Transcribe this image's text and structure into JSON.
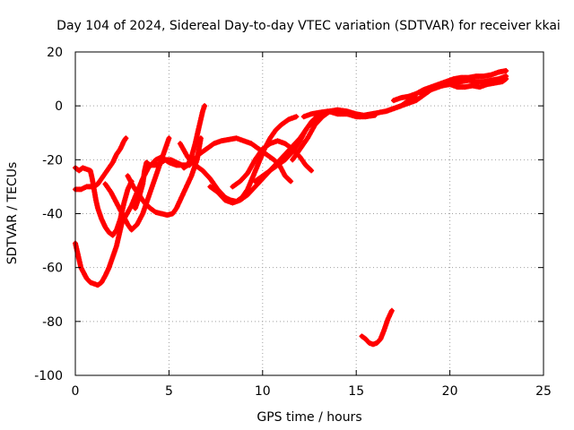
{
  "chart_data": {
    "type": "scatter",
    "title": "Day 104 of 2024, Sidereal Day-to-day VTEC variation (SDTVAR) for receiver kkai",
    "xlabel": "GPS time / hours",
    "ylabel": "SDTVAR / TECUs",
    "xlim": [
      0,
      25
    ],
    "ylim": [
      -100,
      20
    ],
    "xticks": [
      0,
      5,
      10,
      15,
      20,
      25
    ],
    "xtick_labels": [
      "0",
      "5",
      "10",
      "15",
      "20",
      "25"
    ],
    "yticks": [
      -100,
      -80,
      -60,
      -40,
      -20,
      0,
      20
    ],
    "ytick_labels": [
      "-100",
      "-80",
      "-60",
      "-40",
      "-20",
      "0",
      "20"
    ],
    "grid": true,
    "legend": "none",
    "marker_color": "#ff0000",
    "series": [
      {
        "points": [
          [
            0.0,
            -51
          ],
          [
            0.1,
            -54
          ],
          [
            0.2,
            -57
          ],
          [
            0.3,
            -60
          ],
          [
            0.45,
            -62
          ],
          [
            0.6,
            -64
          ],
          [
            0.8,
            -65.5
          ],
          [
            1.0,
            -66
          ],
          [
            1.2,
            -66.5
          ],
          [
            1.4,
            -65.5
          ],
          [
            1.6,
            -63
          ],
          [
            1.8,
            -60
          ],
          [
            2.0,
            -56
          ],
          [
            2.2,
            -52
          ],
          [
            2.4,
            -46
          ],
          [
            2.5,
            -43
          ]
        ]
      },
      {
        "points": [
          [
            0.0,
            -23
          ],
          [
            0.2,
            -24
          ],
          [
            0.4,
            -23
          ],
          [
            0.6,
            -23.5
          ],
          [
            0.8,
            -24
          ],
          [
            0.9,
            -27
          ],
          [
            1.0,
            -31
          ],
          [
            1.1,
            -35
          ],
          [
            1.2,
            -38
          ],
          [
            1.4,
            -42
          ],
          [
            1.6,
            -45
          ],
          [
            1.8,
            -47
          ],
          [
            2.0,
            -48
          ],
          [
            2.2,
            -46
          ],
          [
            2.4,
            -42
          ],
          [
            2.6,
            -36
          ],
          [
            2.8,
            -31
          ],
          [
            3.0,
            -28
          ]
        ]
      },
      {
        "points": [
          [
            0.0,
            -31
          ],
          [
            0.3,
            -31
          ],
          [
            0.6,
            -30
          ],
          [
            0.8,
            -30
          ],
          [
            1.0,
            -30
          ],
          [
            1.2,
            -29
          ],
          [
            1.4,
            -27
          ],
          [
            1.6,
            -25
          ],
          [
            1.8,
            -23
          ],
          [
            2.0,
            -21
          ],
          [
            2.2,
            -18
          ],
          [
            2.4,
            -16
          ],
          [
            2.6,
            -13
          ],
          [
            2.7,
            -12
          ]
        ]
      },
      {
        "points": [
          [
            1.6,
            -29
          ],
          [
            1.9,
            -32
          ],
          [
            2.2,
            -36
          ],
          [
            2.5,
            -40
          ],
          [
            2.8,
            -44
          ],
          [
            3.0,
            -46
          ],
          [
            3.3,
            -44
          ],
          [
            3.6,
            -40
          ],
          [
            3.9,
            -34
          ],
          [
            4.2,
            -28
          ],
          [
            4.5,
            -22
          ],
          [
            4.8,
            -16
          ],
          [
            5.0,
            -12
          ]
        ]
      },
      {
        "points": [
          [
            2.8,
            -26
          ],
          [
            3.1,
            -30
          ],
          [
            3.4,
            -33
          ],
          [
            3.7,
            -36
          ],
          [
            4.0,
            -38
          ],
          [
            4.3,
            -39.5
          ],
          [
            4.6,
            -40
          ],
          [
            4.9,
            -40.5
          ],
          [
            5.2,
            -40
          ],
          [
            5.4,
            -38
          ],
          [
            5.6,
            -35
          ],
          [
            5.8,
            -32
          ],
          [
            6.0,
            -29
          ],
          [
            6.2,
            -26
          ],
          [
            6.5,
            -20
          ],
          [
            6.6,
            -16
          ],
          [
            6.7,
            -12
          ]
        ]
      },
      {
        "points": [
          [
            3.2,
            -38
          ],
          [
            3.4,
            -34
          ],
          [
            3.6,
            -29
          ],
          [
            3.7,
            -24
          ],
          [
            3.8,
            -21
          ],
          [
            4.0,
            -22
          ],
          [
            4.3,
            -22
          ],
          [
            4.6,
            -21
          ],
          [
            4.8,
            -20
          ],
          [
            5.1,
            -20
          ],
          [
            5.4,
            -21
          ],
          [
            5.7,
            -22
          ],
          [
            6.0,
            -22
          ],
          [
            6.2,
            -19
          ],
          [
            6.4,
            -14
          ],
          [
            6.6,
            -8
          ],
          [
            6.8,
            -2
          ],
          [
            6.9,
            0
          ]
        ]
      },
      {
        "points": [
          [
            2.6,
            -42
          ],
          [
            3.0,
            -37
          ],
          [
            3.3,
            -32
          ],
          [
            3.6,
            -27
          ],
          [
            3.9,
            -23
          ],
          [
            4.3,
            -20
          ],
          [
            4.6,
            -19
          ],
          [
            5.0,
            -21
          ],
          [
            5.4,
            -22
          ],
          [
            5.8,
            -22
          ],
          [
            6.1,
            -22
          ]
        ]
      },
      {
        "points": [
          [
            5.6,
            -14
          ],
          [
            6.0,
            -19
          ],
          [
            6.4,
            -22
          ],
          [
            6.8,
            -24
          ],
          [
            7.2,
            -27
          ],
          [
            7.6,
            -31
          ],
          [
            8.0,
            -34
          ],
          [
            8.3,
            -35
          ],
          [
            8.6,
            -35.5
          ],
          [
            8.9,
            -34
          ],
          [
            9.2,
            -31
          ],
          [
            9.5,
            -26
          ],
          [
            9.8,
            -21
          ],
          [
            10.1,
            -16
          ],
          [
            10.4,
            -12
          ],
          [
            10.7,
            -9
          ],
          [
            11.0,
            -7
          ],
          [
            11.4,
            -5
          ],
          [
            11.8,
            -4
          ]
        ]
      },
      {
        "points": [
          [
            5.8,
            -23
          ],
          [
            6.2,
            -21
          ],
          [
            6.6,
            -18
          ],
          [
            7.0,
            -16
          ],
          [
            7.4,
            -14
          ],
          [
            7.8,
            -13
          ],
          [
            8.2,
            -12.5
          ],
          [
            8.6,
            -12
          ],
          [
            9.0,
            -13
          ],
          [
            9.4,
            -14
          ],
          [
            9.8,
            -16
          ],
          [
            10.2,
            -18
          ],
          [
            10.6,
            -20
          ],
          [
            10.9,
            -22
          ],
          [
            11.2,
            -26
          ],
          [
            11.5,
            -28
          ]
        ]
      },
      {
        "points": [
          [
            7.2,
            -30
          ],
          [
            7.6,
            -32
          ],
          [
            8.0,
            -35
          ],
          [
            8.4,
            -36
          ],
          [
            8.8,
            -35
          ],
          [
            9.2,
            -33
          ],
          [
            9.6,
            -30
          ],
          [
            10.0,
            -27
          ],
          [
            10.4,
            -24
          ],
          [
            10.8,
            -21
          ],
          [
            11.2,
            -18
          ],
          [
            11.6,
            -15
          ],
          [
            12.0,
            -12
          ],
          [
            12.4,
            -8
          ],
          [
            12.8,
            -5
          ],
          [
            13.2,
            -3
          ],
          [
            13.6,
            -2
          ]
        ]
      },
      {
        "points": [
          [
            8.4,
            -30
          ],
          [
            8.8,
            -28
          ],
          [
            9.2,
            -25
          ],
          [
            9.6,
            -20
          ],
          [
            10.0,
            -16
          ],
          [
            10.4,
            -14
          ],
          [
            10.8,
            -13
          ],
          [
            11.2,
            -14
          ],
          [
            11.6,
            -16
          ],
          [
            12.0,
            -19
          ],
          [
            12.3,
            -22
          ],
          [
            12.6,
            -24
          ]
        ]
      },
      {
        "points": [
          [
            9.6,
            -28
          ],
          [
            10.0,
            -26
          ],
          [
            10.4,
            -24
          ],
          [
            10.8,
            -22
          ],
          [
            11.2,
            -20
          ],
          [
            11.6,
            -17
          ],
          [
            12.0,
            -13
          ],
          [
            12.3,
            -9
          ],
          [
            12.6,
            -6
          ],
          [
            12.9,
            -4
          ],
          [
            13.2,
            -3
          ],
          [
            13.6,
            -2
          ],
          [
            14.0,
            -2
          ],
          [
            14.4,
            -2.5
          ],
          [
            14.8,
            -3
          ],
          [
            15.2,
            -4
          ],
          [
            15.6,
            -3.5
          ]
        ]
      },
      {
        "points": [
          [
            11.6,
            -20
          ],
          [
            12.0,
            -16
          ],
          [
            12.4,
            -12
          ],
          [
            12.8,
            -7
          ],
          [
            13.2,
            -4
          ],
          [
            13.6,
            -2
          ],
          [
            14.0,
            -1.5
          ],
          [
            14.5,
            -2
          ],
          [
            15.0,
            -3
          ],
          [
            15.4,
            -3.5
          ],
          [
            15.8,
            -3
          ],
          [
            16.2,
            -2.5
          ],
          [
            16.6,
            -2
          ],
          [
            17.0,
            -1
          ],
          [
            17.4,
            0
          ],
          [
            17.8,
            2
          ],
          [
            18.2,
            3
          ]
        ]
      },
      {
        "points": [
          [
            12.2,
            -4
          ],
          [
            12.6,
            -3
          ],
          [
            13.0,
            -2.5
          ],
          [
            13.5,
            -2
          ],
          [
            14.0,
            -3
          ],
          [
            14.5,
            -3
          ],
          [
            15.0,
            -4
          ],
          [
            15.5,
            -4
          ],
          [
            16.0,
            -3.5
          ]
        ]
      },
      {
        "points": [
          [
            16.6,
            -2
          ],
          [
            17.0,
            -1
          ],
          [
            17.4,
            0
          ],
          [
            17.8,
            1
          ],
          [
            18.2,
            2
          ],
          [
            18.6,
            4
          ],
          [
            19.0,
            6
          ],
          [
            19.4,
            7
          ],
          [
            19.8,
            8
          ],
          [
            20.2,
            8.5
          ],
          [
            20.6,
            9
          ],
          [
            21.0,
            9.5
          ],
          [
            21.4,
            9
          ],
          [
            21.8,
            9
          ],
          [
            22.2,
            9.5
          ],
          [
            22.6,
            10
          ],
          [
            23.0,
            11
          ]
        ]
      },
      {
        "points": [
          [
            17.0,
            2
          ],
          [
            17.4,
            3
          ],
          [
            17.8,
            3.5
          ],
          [
            18.2,
            4.5
          ],
          [
            18.6,
            6
          ],
          [
            19.0,
            7
          ],
          [
            19.4,
            8
          ],
          [
            19.8,
            9
          ],
          [
            20.2,
            10
          ],
          [
            20.6,
            10.5
          ],
          [
            21.0,
            10.5
          ],
          [
            21.4,
            11
          ],
          [
            21.8,
            11
          ],
          [
            22.2,
            11.5
          ],
          [
            22.6,
            12.5
          ],
          [
            23.0,
            13
          ]
        ]
      },
      {
        "points": [
          [
            18.4,
            5
          ],
          [
            18.8,
            6
          ],
          [
            19.2,
            7
          ],
          [
            19.6,
            7.5
          ],
          [
            20.0,
            8
          ],
          [
            20.4,
            7
          ],
          [
            20.8,
            7
          ],
          [
            21.2,
            7.5
          ],
          [
            21.6,
            7
          ],
          [
            22.0,
            8
          ],
          [
            22.4,
            8.5
          ],
          [
            22.8,
            9
          ],
          [
            23.0,
            10
          ]
        ]
      },
      {
        "points": [
          [
            15.3,
            -85.5
          ],
          [
            15.5,
            -86.5
          ],
          [
            15.7,
            -88
          ],
          [
            15.9,
            -88.5
          ],
          [
            16.1,
            -88
          ],
          [
            16.3,
            -86.5
          ],
          [
            16.5,
            -83
          ],
          [
            16.7,
            -79
          ],
          [
            16.9,
            -76
          ]
        ]
      }
    ]
  }
}
